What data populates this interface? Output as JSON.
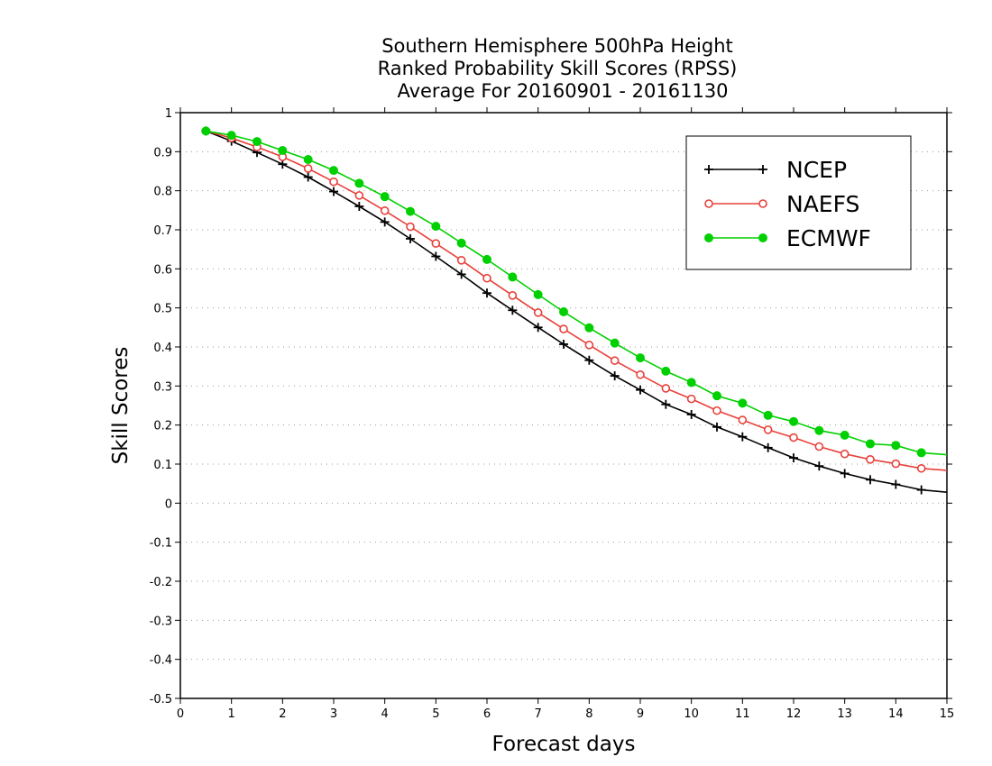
{
  "chart_data": {
    "type": "line",
    "title_lines": [
      "Southern Hemisphere 500hPa Height",
      "Ranked Probability Skill Scores (RPSS)",
      "Average For 20160901 - 20161130"
    ],
    "xlabel": "Forecast days",
    "ylabel": "Skill Scores",
    "xlim": [
      0,
      15
    ],
    "ylim": [
      -0.5,
      1
    ],
    "xticks": [
      "0",
      "1",
      "2",
      "3",
      "4",
      "5",
      "6",
      "7",
      "8",
      "9",
      "10",
      "11",
      "12",
      "13",
      "14",
      "15"
    ],
    "yticks": [
      "1",
      "0.9",
      "0.8",
      "0.7",
      "0.6",
      "0.5",
      "0.4",
      "0.3",
      "0.2",
      "0.1",
      "0",
      "-0.1",
      "-0.2",
      "-0.3",
      "-0.4",
      "-0.5"
    ],
    "grid": "horizontal dotted",
    "legend_position": "top-right",
    "x": [
      0.5,
      1,
      1.5,
      2,
      2.5,
      3,
      3.5,
      4,
      4.5,
      5,
      5.5,
      6,
      6.5,
      7,
      7.5,
      8,
      8.5,
      9,
      9.5,
      10,
      10.5,
      11,
      11.5,
      12,
      12.5,
      13,
      13.5,
      14,
      14.5,
      15
    ],
    "series": [
      {
        "name": "NCEP",
        "color": "#000000",
        "marker": "plus",
        "values": [
          0.953,
          0.927,
          0.898,
          0.868,
          0.835,
          0.798,
          0.76,
          0.72,
          0.677,
          0.632,
          0.586,
          0.538,
          0.494,
          0.45,
          0.407,
          0.366,
          0.326,
          0.29,
          0.253,
          0.227,
          0.195,
          0.17,
          0.142,
          0.116,
          0.095,
          0.076,
          0.06,
          0.048,
          0.034,
          0.028
        ]
      },
      {
        "name": "NAEFS",
        "color": "#e8403a",
        "marker": "open-circle",
        "values": [
          0.953,
          0.935,
          0.912,
          0.887,
          0.857,
          0.823,
          0.788,
          0.749,
          0.708,
          0.665,
          0.622,
          0.576,
          0.532,
          0.488,
          0.446,
          0.405,
          0.365,
          0.329,
          0.294,
          0.267,
          0.237,
          0.213,
          0.188,
          0.168,
          0.145,
          0.126,
          0.112,
          0.101,
          0.089,
          0.084
        ]
      },
      {
        "name": "ECMWF",
        "color": "#00d000",
        "marker": "filled-circle",
        "values": [
          0.953,
          0.942,
          0.926,
          0.903,
          0.88,
          0.852,
          0.819,
          0.785,
          0.747,
          0.709,
          0.666,
          0.624,
          0.579,
          0.534,
          0.49,
          0.449,
          0.41,
          0.372,
          0.338,
          0.309,
          0.275,
          0.256,
          0.225,
          0.209,
          0.186,
          0.174,
          0.152,
          0.148,
          0.129,
          0.124
        ]
      }
    ]
  }
}
